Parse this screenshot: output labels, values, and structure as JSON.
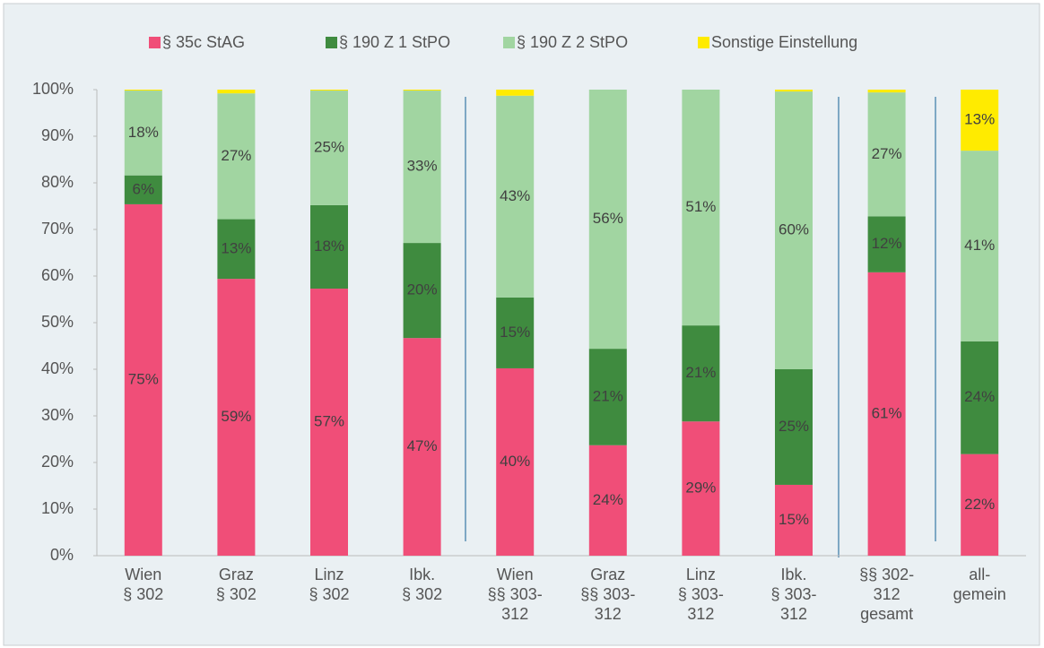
{
  "chart_data": {
    "type": "stacked_bar",
    "categories": [
      [
        "Wien",
        "§ 302"
      ],
      [
        "Graz",
        "§ 302"
      ],
      [
        "Linz",
        "§ 302"
      ],
      [
        "Ibk.",
        "§ 302"
      ],
      [
        "Wien",
        "§§ 303-",
        "312"
      ],
      [
        "Graz",
        "§§ 303-",
        "312"
      ],
      [
        "Linz",
        "§ 303-",
        "312"
      ],
      [
        "Ibk.",
        "§ 303-",
        "312"
      ],
      [
        "§§ 302-",
        "312",
        "gesamt"
      ],
      [
        "all-",
        "gemein"
      ]
    ],
    "series": [
      {
        "name": "§ 35c StAG",
        "color": "#f04e78",
        "values": [
          75.4,
          59.4,
          57.3,
          46.7,
          40.2,
          23.7,
          28.8,
          15.2,
          60.8,
          21.8
        ],
        "value_labels": [
          "75%",
          "59%",
          "57%",
          "47%",
          "40%",
          "24%",
          "29%",
          "15%",
          "61%",
          "22%"
        ]
      },
      {
        "name": "§ 190 Z 1 StPO",
        "color": "#3f8b3f",
        "values": [
          6.2,
          12.8,
          17.9,
          20.4,
          15.2,
          20.7,
          20.6,
          24.8,
          12.0,
          24.2
        ],
        "value_labels": [
          "6%",
          "13%",
          "18%",
          "20%",
          "15%",
          "21%",
          "21%",
          "25%",
          "12%",
          "24%"
        ]
      },
      {
        "name": "§ 190 Z 2 StPO",
        "color": "#a1d5a1",
        "values": [
          18.2,
          27.0,
          24.6,
          32.7,
          43.3,
          55.6,
          50.6,
          59.6,
          26.6,
          40.9
        ],
        "value_labels": [
          "18%",
          "27%",
          "25%",
          "33%",
          "43%",
          "56%",
          "51%",
          "60%",
          "27%",
          "41%"
        ]
      },
      {
        "name": "Sonstige Einstellung",
        "color": "#ffeb00",
        "values": [
          0.2,
          0.8,
          0.2,
          0.2,
          1.3,
          0,
          0,
          0.4,
          0.6,
          13.1
        ],
        "value_labels": [
          null,
          null,
          null,
          null,
          null,
          null,
          null,
          null,
          null,
          "13%"
        ]
      }
    ],
    "ylim": [
      0,
      100
    ],
    "yticks": [
      {
        "value": 0,
        "label": "0%"
      },
      {
        "value": 10,
        "label": "10%"
      },
      {
        "value": 20,
        "label": "20%"
      },
      {
        "value": 30,
        "label": "30%"
      },
      {
        "value": 40,
        "label": "40%"
      },
      {
        "value": 50,
        "label": "50%"
      },
      {
        "value": 60,
        "label": "60%"
      },
      {
        "value": 70,
        "label": "70%"
      },
      {
        "value": 80,
        "label": "80%"
      },
      {
        "value": 90,
        "label": "90%"
      },
      {
        "value": 100,
        "label": "100%"
      }
    ],
    "legend": "top"
  }
}
